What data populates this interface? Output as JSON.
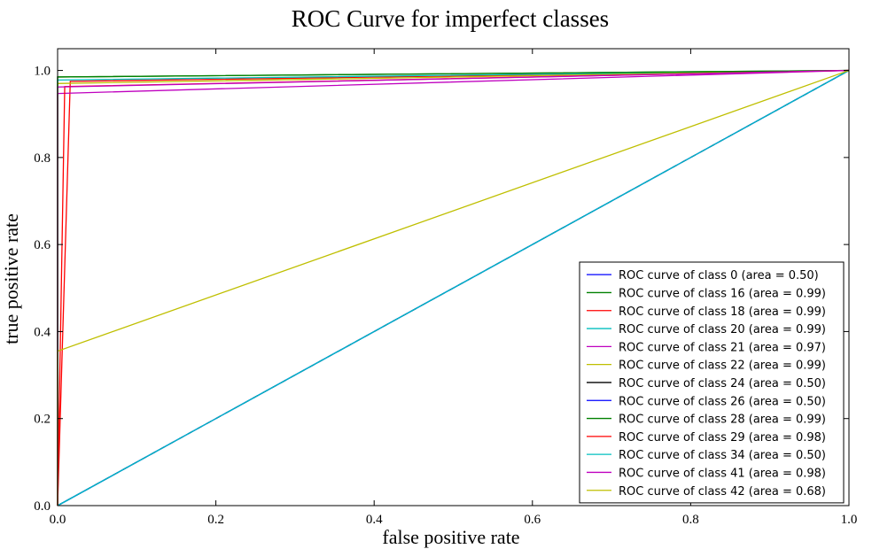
{
  "chart_data": {
    "type": "line",
    "title": "ROC Curve for imperfect classes",
    "xlabel": "false positive rate",
    "ylabel": "true positive rate",
    "xlim": [
      0.0,
      1.0
    ],
    "ylim": [
      0.0,
      1.05
    ],
    "xticks": [
      "0.0",
      "0.2",
      "0.4",
      "0.6",
      "0.8",
      "1.0"
    ],
    "yticks": [
      "0.0",
      "0.2",
      "0.4",
      "0.6",
      "0.8",
      "1.0"
    ],
    "grid": false,
    "legend_position": "lower-right",
    "series": [
      {
        "name": "ROC curve of class 0 (area = 0.50)",
        "color": "#0000ff",
        "x": [
          0,
          1
        ],
        "y": [
          0,
          1
        ]
      },
      {
        "name": "ROC curve of class 16 (area = 0.99)",
        "color": "#008000",
        "x": [
          0,
          0.0,
          1
        ],
        "y": [
          0,
          0.985,
          1
        ]
      },
      {
        "name": "ROC curve of class 18 (area = 0.99)",
        "color": "#ff0000",
        "x": [
          0,
          0.016,
          1
        ],
        "y": [
          0,
          0.975,
          1
        ]
      },
      {
        "name": "ROC curve of class 20 (area = 0.99)",
        "color": "#00bfbf",
        "x": [
          0,
          0.0,
          1
        ],
        "y": [
          0,
          0.978,
          1
        ]
      },
      {
        "name": "ROC curve of class 21 (area = 0.97)",
        "color": "#bf00bf",
        "x": [
          0,
          0.0,
          1
        ],
        "y": [
          0,
          0.947,
          1
        ]
      },
      {
        "name": "ROC curve of class 22 (area = 0.99)",
        "color": "#bfbf00",
        "x": [
          0,
          0.0,
          1
        ],
        "y": [
          0,
          0.97,
          1
        ]
      },
      {
        "name": "ROC curve of class 24 (area = 0.50)",
        "color": "#000000",
        "x": [
          0,
          1
        ],
        "y": [
          0,
          1
        ]
      },
      {
        "name": "ROC curve of class 26 (area = 0.50)",
        "color": "#0000ff",
        "x": [
          0,
          1
        ],
        "y": [
          0,
          1
        ]
      },
      {
        "name": "ROC curve of class 28 (area = 0.99)",
        "color": "#008000",
        "x": [
          0,
          0.0,
          1
        ],
        "y": [
          0,
          0.985,
          1
        ]
      },
      {
        "name": "ROC curve of class 29 (area = 0.98)",
        "color": "#ff0000",
        "x": [
          0,
          0.009,
          1
        ],
        "y": [
          0,
          0.963,
          1
        ]
      },
      {
        "name": "ROC curve of class 34 (area = 0.50)",
        "color": "#00bfbf",
        "x": [
          0,
          1
        ],
        "y": [
          0,
          1
        ]
      },
      {
        "name": "ROC curve of class 41 (area = 0.98)",
        "color": "#bf00bf",
        "x": [
          0,
          0.0,
          1
        ],
        "y": [
          0,
          0.962,
          1
        ]
      },
      {
        "name": "ROC curve of class 42 (area = 0.68)",
        "color": "#bfbf00",
        "x": [
          0,
          0.0,
          1
        ],
        "y": [
          0,
          0.355,
          1
        ]
      }
    ]
  }
}
